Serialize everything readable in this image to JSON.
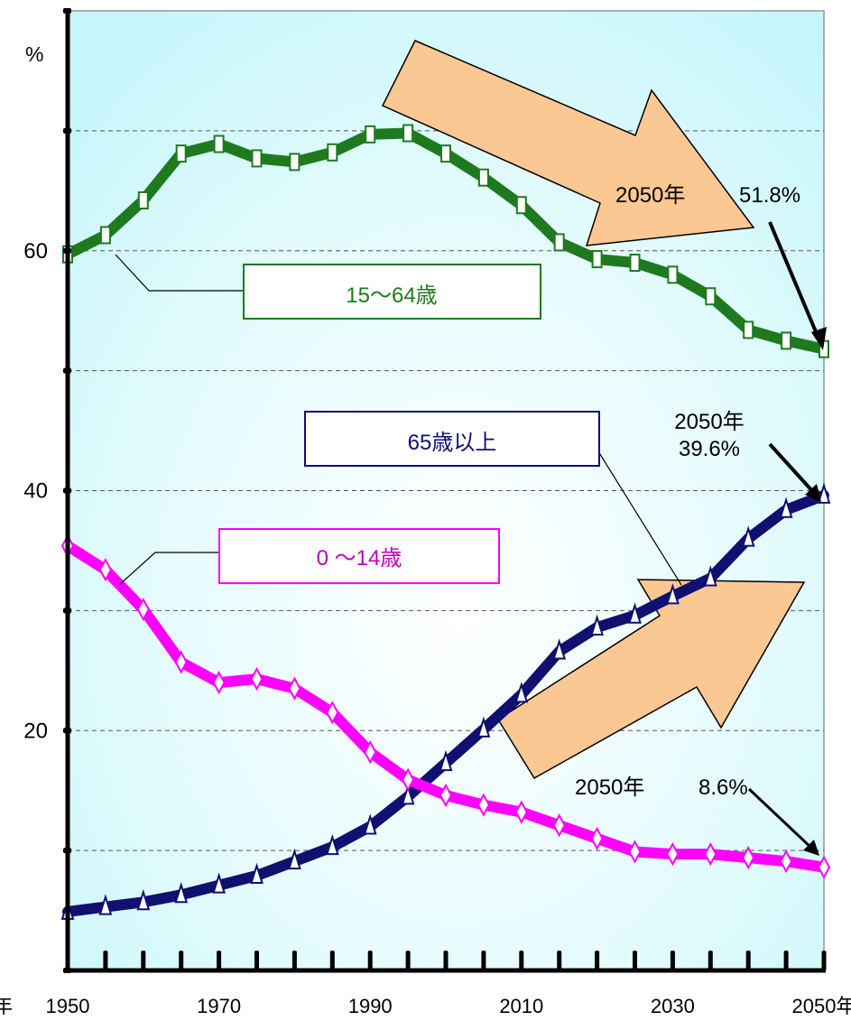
{
  "chart_data": {
    "type": "line",
    "title": "",
    "ylabel": "%",
    "xlabel": "",
    "ylim": [
      0,
      80
    ],
    "y_ticks": [
      0,
      10,
      20,
      30,
      40,
      50,
      60,
      70,
      80
    ],
    "y_tick_labels": [
      {
        "value": 20,
        "text": "20"
      },
      {
        "value": 40,
        "text": "40"
      },
      {
        "value": 60,
        "text": "60"
      }
    ],
    "x": [
      1950,
      1955,
      1960,
      1965,
      1970,
      1975,
      1980,
      1985,
      1990,
      1995,
      2000,
      2005,
      2010,
      2015,
      2020,
      2025,
      2030,
      2035,
      2040,
      2045,
      2050
    ],
    "x_tick_labels": [
      {
        "value": 1950,
        "text": "1950"
      },
      {
        "value": 1970,
        "text": "1970"
      },
      {
        "value": 1990,
        "text": "1990"
      },
      {
        "value": 2010,
        "text": "2010"
      },
      {
        "value": 2030,
        "text": "2030"
      },
      {
        "value": 2050,
        "text": "2050年"
      }
    ],
    "x_axis_prefix": "年",
    "grid": true,
    "colors": {
      "plot_bg_center": "#ffffff",
      "plot_bg_edge": "#c6f6fb",
      "working_age": "#1f7a1f",
      "elderly": "#101070",
      "children": "#ff00ff",
      "arrow_fill": "#fbc893"
    },
    "series": [
      {
        "key": "working_age",
        "values": [
          59.7,
          61.3,
          64.2,
          68.1,
          68.9,
          67.7,
          67.4,
          68.2,
          69.7,
          69.8,
          68.1,
          66.1,
          63.8,
          60.7,
          59.3,
          59.0,
          58.0,
          56.2,
          53.4,
          52.5,
          51.8
        ]
      },
      {
        "key": "elderly",
        "values": [
          4.9,
          5.3,
          5.7,
          6.3,
          7.1,
          7.9,
          9.1,
          10.3,
          12.0,
          14.5,
          17.3,
          20.1,
          23.0,
          26.6,
          28.6,
          29.6,
          31.2,
          32.7,
          36.0,
          38.4,
          39.6
        ]
      },
      {
        "key": "children",
        "values": [
          35.4,
          33.4,
          30.1,
          25.7,
          24.0,
          24.3,
          23.5,
          21.5,
          18.2,
          15.9,
          14.6,
          13.8,
          13.2,
          12.1,
          11.0,
          9.9,
          9.7,
          9.7,
          9.4,
          9.1,
          8.6
        ]
      }
    ],
    "labels": {
      "working_age": "15～64歳",
      "elderly": "65歳以上",
      "children": "0 ～14歳"
    },
    "annotations": {
      "working_age_year": "2050年",
      "working_age_value": "51.8%",
      "elderly_year": "2050年",
      "elderly_value": "39.6%",
      "children_year": "2050年",
      "children_value": "8.6%"
    }
  }
}
